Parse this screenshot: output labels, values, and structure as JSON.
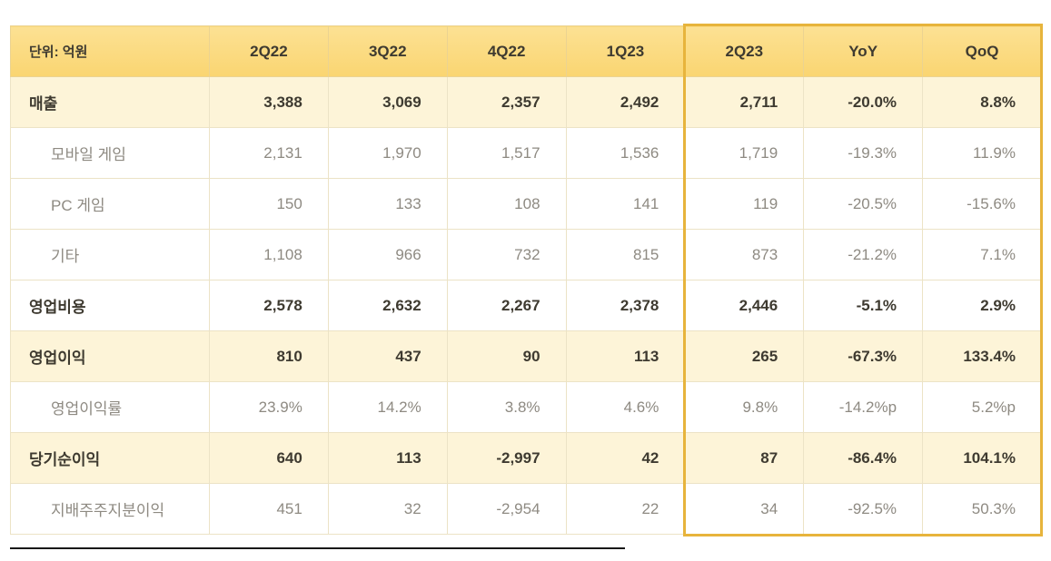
{
  "chart_data": {
    "type": "table",
    "unit_label": "단위: 억원",
    "columns": [
      "2Q22",
      "3Q22",
      "4Q22",
      "1Q23",
      "2Q23",
      "YoY",
      "QoQ"
    ],
    "highlighted_columns": [
      "2Q23",
      "YoY",
      "QoQ"
    ],
    "rows": [
      {
        "label": "매출",
        "emphasis": "primary",
        "values": [
          "3,388",
          "3,069",
          "2,357",
          "2,492",
          "2,711",
          "-20.0%",
          "8.8%"
        ]
      },
      {
        "label": "모바일 게임",
        "emphasis": "sub",
        "values": [
          "2,131",
          "1,970",
          "1,517",
          "1,536",
          "1,719",
          "-19.3%",
          "11.9%"
        ]
      },
      {
        "label": "PC 게임",
        "emphasis": "sub",
        "values": [
          "150",
          "133",
          "108",
          "141",
          "119",
          "-20.5%",
          "-15.6%"
        ]
      },
      {
        "label": "기타",
        "emphasis": "sub",
        "values": [
          "1,108",
          "966",
          "732",
          "815",
          "873",
          "-21.2%",
          "7.1%"
        ]
      },
      {
        "label": "영업비용",
        "emphasis": "strong",
        "values": [
          "2,578",
          "2,632",
          "2,267",
          "2,378",
          "2,446",
          "-5.1%",
          "2.9%"
        ]
      },
      {
        "label": "영업이익",
        "emphasis": "primary",
        "values": [
          "810",
          "437",
          "90",
          "113",
          "265",
          "-67.3%",
          "133.4%"
        ]
      },
      {
        "label": "영업이익률",
        "emphasis": "sub",
        "values": [
          "23.9%",
          "14.2%",
          "3.8%",
          "4.6%",
          "9.8%",
          "-14.2%p",
          "5.2%p"
        ]
      },
      {
        "label": "당기순이익",
        "emphasis": "primary",
        "values": [
          "640",
          "113",
          "-2,997",
          "42",
          "87",
          "-86.4%",
          "104.1%"
        ]
      },
      {
        "label": "지배주주지분이익",
        "emphasis": "sub",
        "values": [
          "451",
          "32",
          "-2,954",
          "22",
          "34",
          "-92.5%",
          "50.3%"
        ]
      }
    ],
    "colors": {
      "header_bg": "#FAD571",
      "primary_row_bg": "#FDF4D8",
      "highlight_border": "#E7B43C",
      "grid_line": "#ECE3C6",
      "text_dark": "#3E3A30",
      "text_sub": "#8E8A82"
    }
  }
}
